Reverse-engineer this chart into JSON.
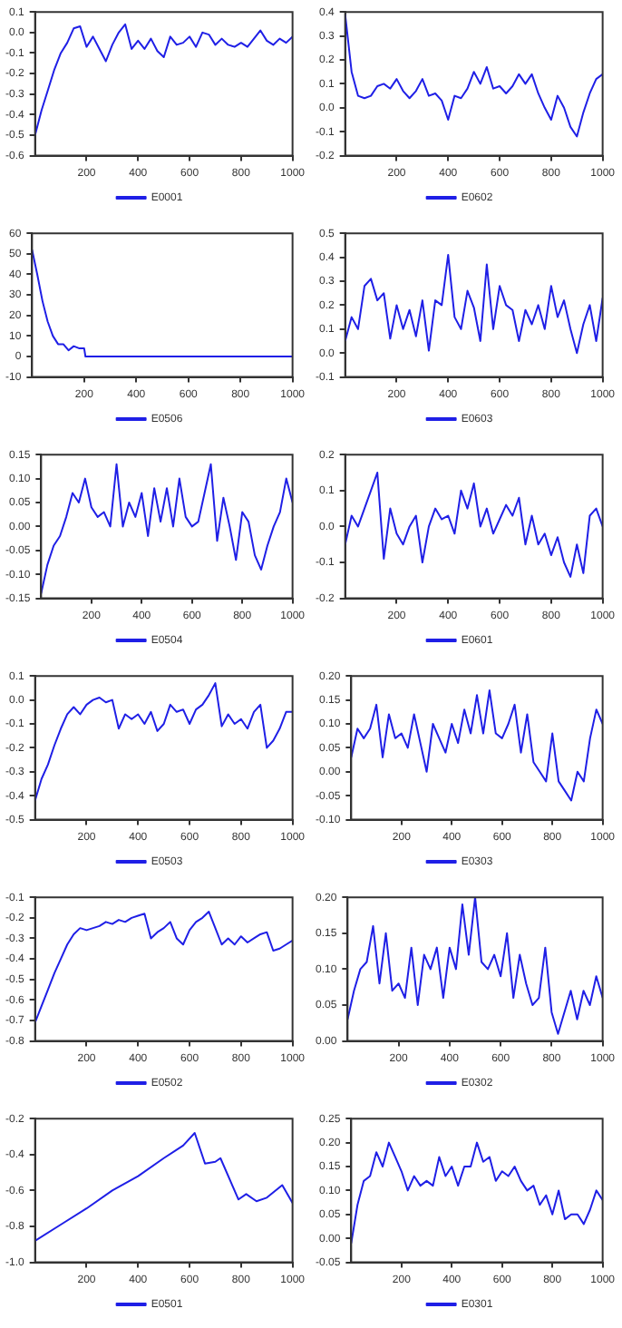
{
  "chart_data": [
    {
      "type": "line",
      "x": [
        0,
        25,
        50,
        75,
        100,
        125,
        150,
        175,
        200,
        225,
        250,
        275,
        300,
        325,
        350,
        375,
        400,
        425,
        450,
        475,
        500,
        525,
        550,
        575,
        600,
        625,
        650,
        675,
        700,
        725,
        750,
        775,
        800,
        825,
        850,
        875,
        900,
        925,
        950,
        975,
        1000
      ],
      "series": [
        {
          "name": "E0001",
          "color": "#1f1fe6",
          "values": [
            -0.5,
            -0.38,
            -0.28,
            -0.18,
            -0.1,
            -0.05,
            0.02,
            0.03,
            -0.07,
            -0.02,
            -0.08,
            -0.14,
            -0.06,
            0.0,
            0.04,
            -0.08,
            -0.04,
            -0.08,
            -0.03,
            -0.09,
            -0.12,
            -0.02,
            -0.06,
            -0.05,
            -0.02,
            -0.07,
            0.0,
            -0.01,
            -0.06,
            -0.03,
            -0.06,
            -0.07,
            -0.05,
            -0.07,
            -0.03,
            0.01,
            -0.04,
            -0.06,
            -0.03,
            -0.05,
            -0.02
          ]
        }
      ],
      "xlim": [
        0,
        1000
      ],
      "xticks": [
        200,
        400,
        600,
        800,
        1000
      ],
      "ylim": [
        -0.6,
        0.1
      ],
      "yticks": [
        {
          "value": -0.6,
          "label": "-0.6"
        },
        {
          "value": -0.5,
          "label": "-0.5"
        },
        {
          "value": -0.4,
          "label": "-0.4"
        },
        {
          "value": -0.3,
          "label": "-0.3"
        },
        {
          "value": -0.2,
          "label": "-0.2"
        },
        {
          "value": -0.1,
          "label": "-0.1"
        },
        {
          "value": 0,
          "label": "0.0"
        },
        {
          "value": 0.1,
          "label": "0.1"
        }
      ],
      "grid": false,
      "legend": "bottom",
      "marker": "none",
      "line_style": "solid"
    },
    {
      "type": "line",
      "x": [
        0,
        25,
        50,
        75,
        100,
        125,
        150,
        175,
        200,
        225,
        250,
        275,
        300,
        325,
        350,
        375,
        400,
        425,
        450,
        475,
        500,
        525,
        550,
        575,
        600,
        625,
        650,
        675,
        700,
        725,
        750,
        775,
        800,
        825,
        850,
        875,
        900,
        925,
        950,
        975,
        1000
      ],
      "series": [
        {
          "name": "E0602",
          "color": "#1f1fe6",
          "values": [
            0.39,
            0.15,
            0.05,
            0.04,
            0.05,
            0.09,
            0.1,
            0.08,
            0.12,
            0.07,
            0.04,
            0.07,
            0.12,
            0.05,
            0.06,
            0.03,
            -0.05,
            0.05,
            0.04,
            0.08,
            0.15,
            0.1,
            0.17,
            0.08,
            0.09,
            0.06,
            0.09,
            0.14,
            0.1,
            0.14,
            0.06,
            0.0,
            -0.05,
            0.05,
            0.0,
            -0.08,
            -0.12,
            -0.02,
            0.06,
            0.12,
            0.14
          ]
        }
      ],
      "xlim": [
        0,
        1000
      ],
      "xticks": [
        200,
        400,
        600,
        800,
        1000
      ],
      "ylim": [
        -0.2,
        0.4
      ],
      "yticks": [
        {
          "value": -0.2,
          "label": "-0.2"
        },
        {
          "value": -0.1,
          "label": "-0.1"
        },
        {
          "value": 0,
          "label": "0.0"
        },
        {
          "value": 0.1,
          "label": "0.1"
        },
        {
          "value": 0.2,
          "label": "0.2"
        },
        {
          "value": 0.3,
          "label": "0.3"
        },
        {
          "value": 0.4,
          "label": "0.4"
        }
      ],
      "grid": false,
      "legend": "bottom",
      "marker": "none",
      "line_style": "solid"
    },
    {
      "type": "line",
      "x": [
        0,
        20,
        40,
        60,
        80,
        100,
        120,
        140,
        160,
        180,
        200,
        205,
        400,
        600,
        800,
        1000
      ],
      "series": [
        {
          "name": "E0506",
          "color": "#1f1fe6",
          "values": [
            52,
            40,
            27,
            17,
            10,
            6,
            6,
            3,
            5,
            4,
            4,
            0,
            0,
            0,
            0,
            0
          ]
        }
      ],
      "xlim": [
        0,
        1000
      ],
      "xticks": [
        200,
        400,
        600,
        800,
        1000
      ],
      "ylim": [
        -10,
        60
      ],
      "yticks": [
        -10,
        0,
        10,
        20,
        30,
        40,
        50,
        60
      ],
      "grid": false,
      "legend": "bottom",
      "marker": "none",
      "line_style": "solid"
    },
    {
      "type": "line",
      "x": [
        0,
        25,
        50,
        75,
        100,
        125,
        150,
        175,
        200,
        225,
        250,
        275,
        300,
        325,
        350,
        375,
        400,
        425,
        450,
        475,
        500,
        525,
        550,
        575,
        600,
        625,
        650,
        675,
        700,
        725,
        750,
        775,
        800,
        825,
        850,
        875,
        900,
        925,
        950,
        975,
        1000
      ],
      "series": [
        {
          "name": "E0603",
          "color": "#1f1fe6",
          "values": [
            0.05,
            0.15,
            0.1,
            0.28,
            0.31,
            0.22,
            0.25,
            0.06,
            0.2,
            0.1,
            0.18,
            0.07,
            0.22,
            0.01,
            0.22,
            0.2,
            0.41,
            0.15,
            0.1,
            0.26,
            0.19,
            0.05,
            0.37,
            0.1,
            0.28,
            0.2,
            0.18,
            0.05,
            0.18,
            0.12,
            0.2,
            0.1,
            0.28,
            0.15,
            0.22,
            0.1,
            0.0,
            0.12,
            0.2,
            0.05,
            0.23
          ]
        }
      ],
      "xlim": [
        0,
        1000
      ],
      "xticks": [
        200,
        400,
        600,
        800,
        1000
      ],
      "ylim": [
        -0.1,
        0.5
      ],
      "yticks": [
        {
          "value": -0.1,
          "label": "-0.1"
        },
        {
          "value": 0,
          "label": "0.0"
        },
        {
          "value": 0.1,
          "label": "0.1"
        },
        {
          "value": 0.2,
          "label": "0.2"
        },
        {
          "value": 0.3,
          "label": "0.3"
        },
        {
          "value": 0.4,
          "label": "0.4"
        },
        {
          "value": 0.5,
          "label": "0.5"
        }
      ],
      "grid": false,
      "legend": "bottom",
      "marker": "none",
      "line_style": "solid"
    },
    {
      "type": "line",
      "x": [
        0,
        25,
        50,
        75,
        100,
        125,
        150,
        175,
        200,
        225,
        250,
        275,
        300,
        325,
        350,
        375,
        400,
        425,
        450,
        475,
        500,
        525,
        550,
        575,
        600,
        625,
        650,
        675,
        700,
        725,
        750,
        775,
        800,
        825,
        850,
        875,
        900,
        925,
        950,
        975,
        1000
      ],
      "series": [
        {
          "name": "E0504",
          "color": "#1f1fe6",
          "values": [
            -0.14,
            -0.08,
            -0.04,
            -0.02,
            0.02,
            0.07,
            0.05,
            0.1,
            0.04,
            0.02,
            0.03,
            0.0,
            0.13,
            0.0,
            0.05,
            0.02,
            0.07,
            -0.02,
            0.08,
            0.01,
            0.08,
            0.0,
            0.1,
            0.02,
            0.0,
            0.01,
            0.07,
            0.13,
            -0.03,
            0.06,
            0.0,
            -0.07,
            0.03,
            0.01,
            -0.06,
            -0.09,
            -0.04,
            0.0,
            0.03,
            0.1,
            0.05
          ]
        }
      ],
      "xlim": [
        0,
        1000
      ],
      "xticks": [
        200,
        400,
        600,
        800,
        1000
      ],
      "ylim": [
        -0.15,
        0.15
      ],
      "yticks": [
        {
          "value": -0.15,
          "label": "-0.15"
        },
        {
          "value": -0.1,
          "label": "-0.10"
        },
        {
          "value": -0.05,
          "label": "-0.05"
        },
        {
          "value": 0,
          "label": "0.00"
        },
        {
          "value": 0.05,
          "label": "0.05"
        },
        {
          "value": 0.1,
          "label": "0.10"
        },
        {
          "value": 0.15,
          "label": "0.15"
        }
      ],
      "grid": false,
      "legend": "bottom",
      "marker": "none",
      "line_style": "solid"
    },
    {
      "type": "line",
      "x": [
        0,
        25,
        50,
        75,
        100,
        125,
        150,
        175,
        200,
        225,
        250,
        275,
        300,
        325,
        350,
        375,
        400,
        425,
        450,
        475,
        500,
        525,
        550,
        575,
        600,
        625,
        650,
        675,
        700,
        725,
        750,
        775,
        800,
        825,
        850,
        875,
        900,
        925,
        950,
        975,
        1000
      ],
      "series": [
        {
          "name": "E0601",
          "color": "#1f1fe6",
          "values": [
            -0.05,
            0.03,
            0.0,
            0.05,
            0.1,
            0.15,
            -0.09,
            0.05,
            -0.02,
            -0.05,
            0.0,
            0.03,
            -0.1,
            0.0,
            0.05,
            0.02,
            0.03,
            -0.02,
            0.1,
            0.05,
            0.12,
            0.0,
            0.05,
            -0.02,
            0.02,
            0.06,
            0.03,
            0.08,
            -0.05,
            0.03,
            -0.05,
            -0.02,
            -0.08,
            -0.03,
            -0.1,
            -0.14,
            -0.05,
            -0.13,
            0.03,
            0.05,
            0.0
          ]
        }
      ],
      "xlim": [
        0,
        1000
      ],
      "xticks": [
        200,
        400,
        600,
        800,
        1000
      ],
      "ylim": [
        -0.2,
        0.2
      ],
      "yticks": [
        {
          "value": -0.2,
          "label": "-0.2"
        },
        {
          "value": -0.1,
          "label": "-0.1"
        },
        {
          "value": 0,
          "label": "0.0"
        },
        {
          "value": 0.1,
          "label": "0.1"
        },
        {
          "value": 0.2,
          "label": "0.2"
        }
      ],
      "grid": false,
      "legend": "bottom",
      "marker": "none",
      "line_style": "solid"
    },
    {
      "type": "line",
      "x": [
        0,
        25,
        50,
        75,
        100,
        125,
        150,
        175,
        200,
        225,
        250,
        275,
        300,
        325,
        350,
        375,
        400,
        425,
        450,
        475,
        500,
        525,
        550,
        575,
        600,
        625,
        650,
        675,
        700,
        725,
        750,
        775,
        800,
        825,
        850,
        875,
        900,
        925,
        950,
        975,
        1000
      ],
      "series": [
        {
          "name": "E0503",
          "color": "#1f1fe6",
          "values": [
            -0.42,
            -0.33,
            -0.27,
            -0.19,
            -0.12,
            -0.06,
            -0.03,
            -0.06,
            -0.02,
            0.0,
            0.01,
            -0.01,
            0.0,
            -0.12,
            -0.06,
            -0.08,
            -0.06,
            -0.1,
            -0.05,
            -0.13,
            -0.1,
            -0.02,
            -0.05,
            -0.04,
            -0.1,
            -0.04,
            -0.02,
            0.02,
            0.07,
            -0.11,
            -0.06,
            -0.1,
            -0.08,
            -0.12,
            -0.05,
            -0.02,
            -0.2,
            -0.17,
            -0.12,
            -0.05,
            -0.05
          ]
        }
      ],
      "xlim": [
        0,
        1000
      ],
      "xticks": [
        200,
        400,
        600,
        800,
        1000
      ],
      "ylim": [
        -0.5,
        0.1
      ],
      "yticks": [
        {
          "value": -0.5,
          "label": "-0.5"
        },
        {
          "value": -0.4,
          "label": "-0.4"
        },
        {
          "value": -0.3,
          "label": "-0.3"
        },
        {
          "value": -0.2,
          "label": "-0.2"
        },
        {
          "value": -0.1,
          "label": "-0.1"
        },
        {
          "value": 0,
          "label": "0.0"
        },
        {
          "value": 0.1,
          "label": "0.1"
        }
      ],
      "grid": false,
      "legend": "bottom",
      "marker": "none",
      "line_style": "solid"
    },
    {
      "type": "line",
      "x": [
        0,
        25,
        50,
        75,
        100,
        125,
        150,
        175,
        200,
        225,
        250,
        275,
        300,
        325,
        350,
        375,
        400,
        425,
        450,
        475,
        500,
        525,
        550,
        575,
        600,
        625,
        650,
        675,
        700,
        725,
        750,
        775,
        800,
        825,
        850,
        875,
        900,
        925,
        950,
        975,
        1000
      ],
      "series": [
        {
          "name": "E0303",
          "color": "#1f1fe6",
          "values": [
            0.03,
            0.09,
            0.07,
            0.09,
            0.14,
            0.03,
            0.12,
            0.07,
            0.08,
            0.05,
            0.12,
            0.06,
            0.0,
            0.1,
            0.07,
            0.04,
            0.1,
            0.06,
            0.13,
            0.08,
            0.16,
            0.08,
            0.17,
            0.08,
            0.07,
            0.1,
            0.14,
            0.04,
            0.12,
            0.02,
            0.0,
            -0.02,
            0.08,
            -0.02,
            -0.04,
            -0.06,
            0.0,
            -0.02,
            0.07,
            0.13,
            0.1
          ]
        }
      ],
      "xlim": [
        0,
        1000
      ],
      "xticks": [
        200,
        400,
        600,
        800,
        1000
      ],
      "ylim": [
        -0.1,
        0.2
      ],
      "yticks": [
        {
          "value": -0.1,
          "label": "-0.10"
        },
        {
          "value": -0.05,
          "label": "-0.05"
        },
        {
          "value": 0,
          "label": "0.00"
        },
        {
          "value": 0.05,
          "label": "0.05"
        },
        {
          "value": 0.1,
          "label": "0.10"
        },
        {
          "value": 0.15,
          "label": "0.15"
        },
        {
          "value": 0.2,
          "label": "0.20"
        }
      ],
      "grid": false,
      "legend": "bottom",
      "marker": "none",
      "line_style": "solid"
    },
    {
      "type": "line",
      "x": [
        0,
        25,
        50,
        75,
        100,
        125,
        150,
        175,
        200,
        225,
        250,
        275,
        300,
        325,
        350,
        375,
        400,
        425,
        450,
        475,
        500,
        525,
        550,
        575,
        600,
        625,
        650,
        675,
        700,
        725,
        750,
        775,
        800,
        825,
        850,
        875,
        900,
        925,
        950,
        975,
        1000
      ],
      "series": [
        {
          "name": "E0502",
          "color": "#1f1fe6",
          "values": [
            -0.71,
            -0.63,
            -0.55,
            -0.47,
            -0.4,
            -0.33,
            -0.28,
            -0.25,
            -0.26,
            -0.25,
            -0.24,
            -0.22,
            -0.23,
            -0.21,
            -0.22,
            -0.2,
            -0.19,
            -0.18,
            -0.3,
            -0.27,
            -0.25,
            -0.22,
            -0.3,
            -0.33,
            -0.26,
            -0.22,
            -0.2,
            -0.17,
            -0.25,
            -0.33,
            -0.3,
            -0.33,
            -0.29,
            -0.32,
            -0.3,
            -0.28,
            -0.27,
            -0.36,
            -0.35,
            -0.33,
            -0.31
          ]
        }
      ],
      "xlim": [
        0,
        1000
      ],
      "xticks": [
        200,
        400,
        600,
        800,
        1000
      ],
      "ylim": [
        -0.8,
        -0.1
      ],
      "yticks": [
        {
          "value": -0.8,
          "label": "-0.8"
        },
        {
          "value": -0.7,
          "label": "-0.7"
        },
        {
          "value": -0.6,
          "label": "-0.6"
        },
        {
          "value": -0.5,
          "label": "-0.5"
        },
        {
          "value": -0.4,
          "label": "-0.4"
        },
        {
          "value": -0.3,
          "label": "-0.3"
        },
        {
          "value": -0.2,
          "label": "-0.2"
        },
        {
          "value": -0.1,
          "label": "-0.1"
        }
      ],
      "grid": false,
      "legend": "bottom",
      "marker": "none",
      "line_style": "solid"
    },
    {
      "type": "line",
      "x": [
        0,
        25,
        50,
        75,
        100,
        125,
        150,
        175,
        200,
        225,
        250,
        275,
        300,
        325,
        350,
        375,
        400,
        425,
        450,
        475,
        500,
        525,
        550,
        575,
        600,
        625,
        650,
        675,
        700,
        725,
        750,
        775,
        800,
        825,
        850,
        875,
        900,
        925,
        950,
        975,
        1000
      ],
      "series": [
        {
          "name": "E0302",
          "color": "#1f1fe6",
          "values": [
            0.03,
            0.07,
            0.1,
            0.11,
            0.16,
            0.08,
            0.15,
            0.07,
            0.08,
            0.06,
            0.13,
            0.05,
            0.12,
            0.1,
            0.13,
            0.06,
            0.13,
            0.1,
            0.19,
            0.12,
            0.2,
            0.11,
            0.1,
            0.12,
            0.09,
            0.15,
            0.06,
            0.12,
            0.08,
            0.05,
            0.06,
            0.13,
            0.04,
            0.01,
            0.04,
            0.07,
            0.03,
            0.07,
            0.05,
            0.09,
            0.06
          ]
        }
      ],
      "xlim": [
        0,
        1000
      ],
      "xticks": [
        200,
        400,
        600,
        800,
        1000
      ],
      "ylim": [
        0,
        0.2
      ],
      "yticks": [
        {
          "value": 0,
          "label": "0.00"
        },
        {
          "value": 0.05,
          "label": "0.05"
        },
        {
          "value": 0.1,
          "label": "0.10"
        },
        {
          "value": 0.15,
          "label": "0.15"
        },
        {
          "value": 0.2,
          "label": "0.20"
        }
      ],
      "grid": false,
      "legend": "bottom",
      "marker": "none",
      "line_style": "solid"
    },
    {
      "type": "line",
      "x": [
        0,
        100,
        200,
        300,
        400,
        500,
        575,
        620,
        660,
        700,
        720,
        790,
        820,
        860,
        900,
        960,
        1000
      ],
      "series": [
        {
          "name": "E0501",
          "color": "#1f1fe6",
          "values": [
            -0.88,
            -0.79,
            -0.7,
            -0.6,
            -0.52,
            -0.42,
            -0.35,
            -0.28,
            -0.45,
            -0.44,
            -0.42,
            -0.65,
            -0.62,
            -0.66,
            -0.64,
            -0.57,
            -0.67
          ]
        }
      ],
      "xlim": [
        0,
        1000
      ],
      "xticks": [
        200,
        400,
        600,
        800,
        1000
      ],
      "ylim": [
        -1.0,
        -0.2
      ],
      "yticks": [
        {
          "value": -1.0,
          "label": "-1.0"
        },
        {
          "value": -0.8,
          "label": "-0.8"
        },
        {
          "value": -0.6,
          "label": "-0.6"
        },
        {
          "value": -0.4,
          "label": "-0.4"
        },
        {
          "value": -0.2,
          "label": "-0.2"
        }
      ],
      "grid": false,
      "legend": "bottom",
      "marker": "none",
      "line_style": "solid"
    },
    {
      "type": "line",
      "x": [
        0,
        25,
        50,
        75,
        100,
        125,
        150,
        175,
        200,
        225,
        250,
        275,
        300,
        325,
        350,
        375,
        400,
        425,
        450,
        475,
        500,
        525,
        550,
        575,
        600,
        625,
        650,
        675,
        700,
        725,
        750,
        775,
        800,
        825,
        850,
        875,
        900,
        925,
        950,
        975,
        1000
      ],
      "series": [
        {
          "name": "E0301",
          "color": "#1f1fe6",
          "values": [
            -0.01,
            0.07,
            0.12,
            0.13,
            0.18,
            0.15,
            0.2,
            0.17,
            0.14,
            0.1,
            0.13,
            0.11,
            0.12,
            0.11,
            0.17,
            0.13,
            0.15,
            0.11,
            0.15,
            0.15,
            0.2,
            0.16,
            0.17,
            0.12,
            0.14,
            0.13,
            0.15,
            0.12,
            0.1,
            0.11,
            0.07,
            0.09,
            0.05,
            0.1,
            0.04,
            0.05,
            0.05,
            0.03,
            0.06,
            0.1,
            0.08
          ]
        }
      ],
      "xlim": [
        0,
        1000
      ],
      "xticks": [
        200,
        400,
        600,
        800,
        1000
      ],
      "ylim": [
        -0.05,
        0.25
      ],
      "yticks": [
        {
          "value": -0.05,
          "label": "-0.05"
        },
        {
          "value": 0,
          "label": "0.00"
        },
        {
          "value": 0.05,
          "label": "0.05"
        },
        {
          "value": 0.1,
          "label": "0.10"
        },
        {
          "value": 0.15,
          "label": "0.15"
        },
        {
          "value": 0.2,
          "label": "0.20"
        },
        {
          "value": 0.25,
          "label": "0.25"
        }
      ],
      "grid": false,
      "legend": "bottom",
      "marker": "none",
      "line_style": "solid"
    }
  ]
}
